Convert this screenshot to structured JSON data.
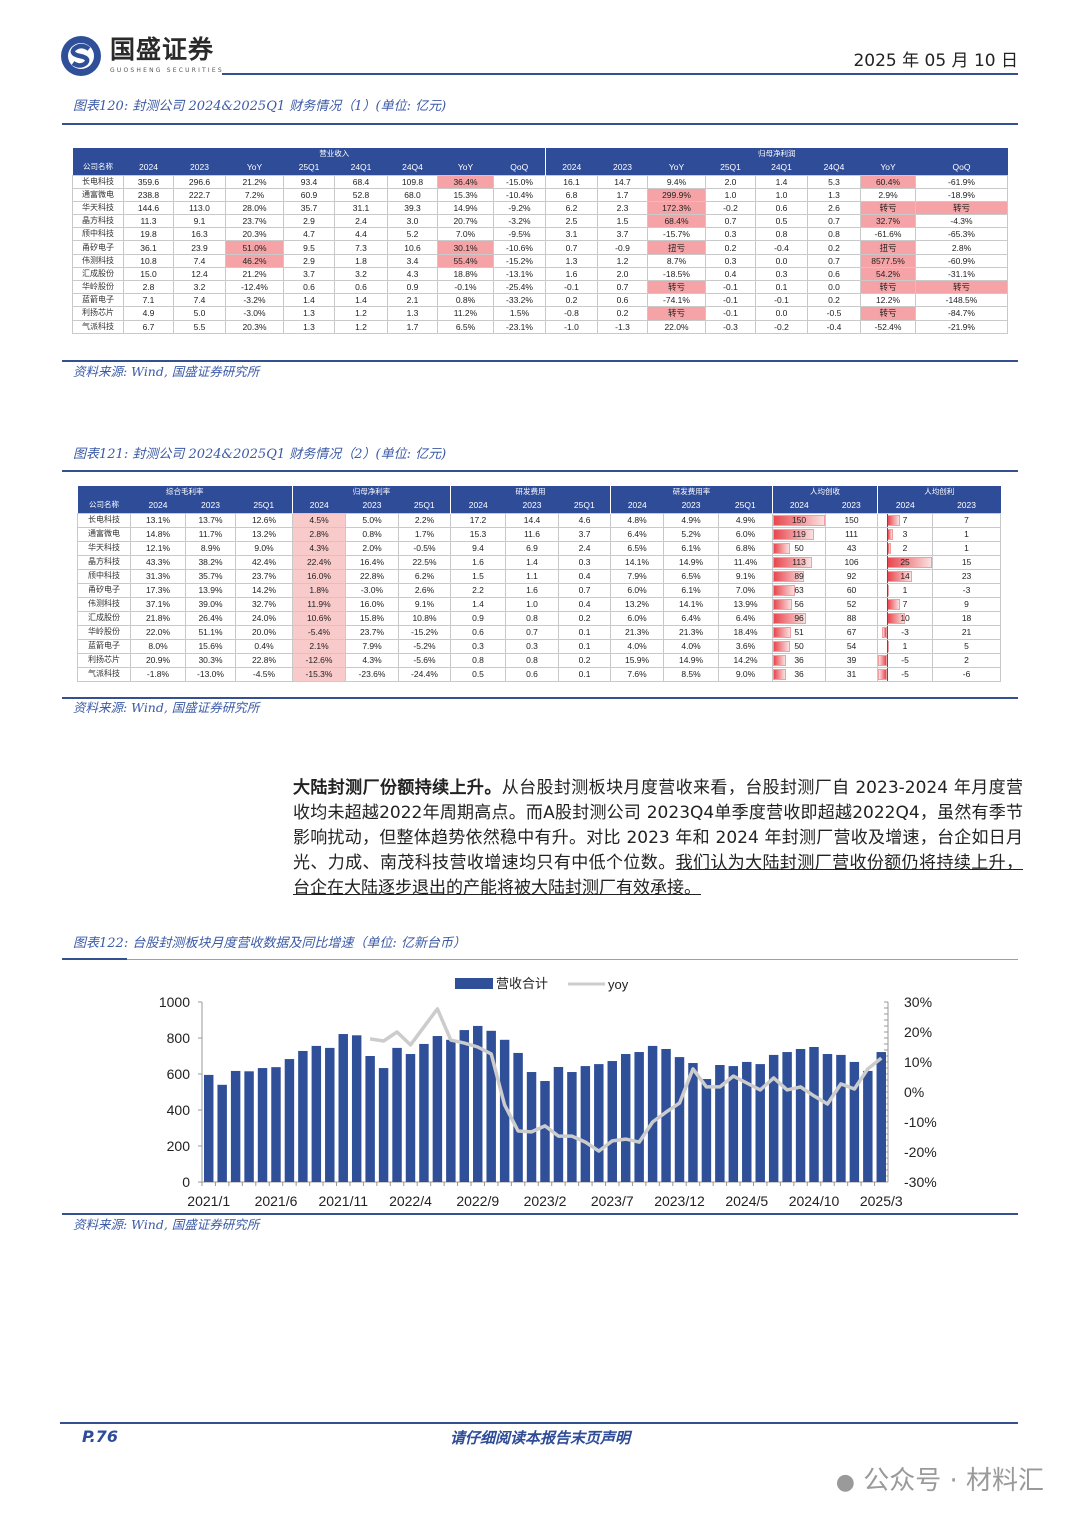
{
  "header": {
    "logo_cn": "国盛证券",
    "logo_en": "GUOSHENG SECURITIES",
    "date": "2025 年 05 月 10 日"
  },
  "figure120": {
    "title": "图表120:  封测公司 2024&2025Q1 财务情况（1）(单位:  亿元)",
    "group_revenue": "营业收入",
    "group_profit": "归母净利润",
    "columns": [
      "公司名称",
      "2024",
      "2023",
      "YoY",
      "25Q1",
      "24Q1",
      "24Q4",
      "YoY",
      "QoQ",
      "2024",
      "2023",
      "YoY",
      "25Q1",
      "24Q1",
      "24Q4",
      "YoY",
      "QoQ"
    ],
    "rows": [
      {
        "cells": [
          "长电科技",
          "359.6",
          "296.6",
          "21.2%",
          "93.4",
          "68.4",
          "109.8",
          "36.4%",
          "-15.0%",
          "16.1",
          "14.7",
          "9.4%",
          "2.0",
          "1.4",
          "5.3",
          "60.4%",
          "-61.9%"
        ],
        "highlight": [
          7,
          15
        ]
      },
      {
        "cells": [
          "通富微电",
          "238.8",
          "222.7",
          "7.2%",
          "60.9",
          "52.8",
          "68.0",
          "15.3%",
          "-10.4%",
          "6.8",
          "1.7",
          "299.9%",
          "1.0",
          "1.0",
          "1.3",
          "2.9%",
          "-18.9%"
        ],
        "highlight": [
          11
        ]
      },
      {
        "cells": [
          "华天科技",
          "144.6",
          "113.0",
          "28.0%",
          "35.7",
          "31.1",
          "39.3",
          "14.9%",
          "-9.2%",
          "6.2",
          "2.3",
          "172.3%",
          "-0.2",
          "0.6",
          "2.6",
          "转亏",
          "转亏"
        ],
        "highlight": [
          11,
          15,
          16
        ]
      },
      {
        "cells": [
          "晶方科技",
          "11.3",
          "9.1",
          "23.7%",
          "2.9",
          "2.4",
          "3.0",
          "20.7%",
          "-3.2%",
          "2.5",
          "1.5",
          "68.4%",
          "0.7",
          "0.5",
          "0.7",
          "32.7%",
          "-4.3%"
        ],
        "highlight": [
          11,
          15
        ]
      },
      {
        "cells": [
          "颀中科技",
          "19.8",
          "16.3",
          "20.3%",
          "4.7",
          "4.4",
          "5.2",
          "7.0%",
          "-9.5%",
          "3.1",
          "3.7",
          "-15.7%",
          "0.3",
          "0.8",
          "0.8",
          "-61.6%",
          "-65.3%"
        ],
        "highlight": []
      },
      {
        "cells": [
          "甬矽电子",
          "36.1",
          "23.9",
          "51.0%",
          "9.5",
          "7.3",
          "10.6",
          "30.1%",
          "-10.6%",
          "0.7",
          "-0.9",
          "扭亏",
          "0.2",
          "-0.4",
          "0.2",
          "扭亏",
          "2.8%"
        ],
        "highlight": [
          3,
          7,
          11,
          15
        ]
      },
      {
        "cells": [
          "伟测科技",
          "10.8",
          "7.4",
          "46.2%",
          "2.9",
          "1.8",
          "3.4",
          "55.4%",
          "-15.2%",
          "1.3",
          "1.2",
          "8.7%",
          "0.3",
          "0.0",
          "0.7",
          "8577.5%",
          "-60.9%"
        ],
        "highlight": [
          3,
          7,
          15
        ]
      },
      {
        "cells": [
          "汇成股份",
          "15.0",
          "12.4",
          "21.2%",
          "3.7",
          "3.2",
          "4.3",
          "18.8%",
          "-13.1%",
          "1.6",
          "2.0",
          "-18.5%",
          "0.4",
          "0.3",
          "0.6",
          "54.2%",
          "-31.1%"
        ],
        "highlight": [
          15
        ]
      },
      {
        "cells": [
          "华岭股份",
          "2.8",
          "3.2",
          "-12.4%",
          "0.6",
          "0.6",
          "0.9",
          "-0.1%",
          "-25.4%",
          "-0.1",
          "0.7",
          "转亏",
          "-0.1",
          "0.1",
          "0.0",
          "转亏",
          "转亏"
        ],
        "highlight": [
          11,
          15,
          16
        ]
      },
      {
        "cells": [
          "蓝箭电子",
          "7.1",
          "7.4",
          "-3.2%",
          "1.4",
          "1.4",
          "2.1",
          "0.8%",
          "-33.2%",
          "0.2",
          "0.6",
          "-74.1%",
          "-0.1",
          "-0.1",
          "0.2",
          "12.2%",
          "-148.5%"
        ],
        "highlight": []
      },
      {
        "cells": [
          "利扬芯片",
          "4.9",
          "5.0",
          "-3.0%",
          "1.3",
          "1.2",
          "1.3",
          "11.2%",
          "1.5%",
          "-0.8",
          "0.2",
          "转亏",
          "-0.1",
          "0.0",
          "-0.5",
          "转亏",
          "-84.7%"
        ],
        "highlight": [
          11,
          15
        ]
      },
      {
        "cells": [
          "气派科技",
          "6.7",
          "5.5",
          "20.3%",
          "1.3",
          "1.2",
          "1.7",
          "6.5%",
          "-23.1%",
          "-1.0",
          "-1.3",
          "22.0%",
          "-0.3",
          "-0.2",
          "-0.4",
          "-52.4%",
          "-21.9%"
        ],
        "highlight": []
      }
    ],
    "source": "资料来源:  Wind,  国盛证券研究所"
  },
  "figure121": {
    "title": "图表121:  封测公司 2024&2025Q1 财务情况（2）(单位:  亿元)",
    "groups": [
      "综合毛利率",
      "归母净利率",
      "研发费用",
      "研发费用率",
      "人均创收",
      "人均创利"
    ],
    "columns": [
      "公司名称",
      "2024",
      "2023",
      "25Q1",
      "2024",
      "2023",
      "25Q1",
      "2024",
      "2023",
      "25Q1",
      "2024",
      "2023",
      "25Q1",
      "2024",
      "2023",
      "2024",
      "2023"
    ],
    "rows": [
      [
        "长电科技",
        "13.1%",
        "13.7%",
        "12.6%",
        "4.5%",
        "5.0%",
        "2.2%",
        "17.2",
        "14.4",
        "4.6",
        "4.8%",
        "4.9%",
        "4.9%",
        150,
        150,
        7,
        7
      ],
      [
        "通富微电",
        "14.8%",
        "11.7%",
        "13.2%",
        "2.8%",
        "0.8%",
        "1.7%",
        "15.3",
        "11.6",
        "3.7",
        "6.4%",
        "5.2%",
        "6.0%",
        119,
        111,
        3,
        1
      ],
      [
        "华天科技",
        "12.1%",
        "8.9%",
        "9.0%",
        "4.3%",
        "2.0%",
        "-0.5%",
        "9.4",
        "6.9",
        "2.4",
        "6.5%",
        "6.1%",
        "6.8%",
        50,
        43,
        2,
        1
      ],
      [
        "晶方科技",
        "43.3%",
        "38.2%",
        "42.4%",
        "22.4%",
        "16.4%",
        "22.5%",
        "1.6",
        "1.4",
        "0.3",
        "14.1%",
        "14.9%",
        "11.4%",
        113,
        106,
        25,
        15
      ],
      [
        "颀中科技",
        "31.3%",
        "35.7%",
        "23.7%",
        "16.0%",
        "22.8%",
        "6.2%",
        "1.5",
        "1.1",
        "0.4",
        "7.9%",
        "6.5%",
        "9.1%",
        89,
        92,
        14,
        23
      ],
      [
        "甬矽电子",
        "17.3%",
        "13.9%",
        "14.2%",
        "1.8%",
        "-3.0%",
        "2.6%",
        "2.2",
        "1.6",
        "0.7",
        "6.0%",
        "6.1%",
        "7.0%",
        63,
        60,
        1,
        -3
      ],
      [
        "伟测科技",
        "37.1%",
        "39.0%",
        "32.7%",
        "11.9%",
        "16.0%",
        "9.1%",
        "1.4",
        "1.0",
        "0.4",
        "13.2%",
        "14.1%",
        "13.9%",
        56,
        52,
        7,
        9
      ],
      [
        "汇成股份",
        "21.8%",
        "26.4%",
        "24.0%",
        "10.6%",
        "15.8%",
        "10.8%",
        "0.9",
        "0.8",
        "0.2",
        "6.0%",
        "6.4%",
        "6.4%",
        96,
        88,
        10,
        18
      ],
      [
        "华岭股份",
        "22.0%",
        "51.1%",
        "20.0%",
        "-5.4%",
        "23.7%",
        "-15.2%",
        "0.6",
        "0.7",
        "0.1",
        "21.3%",
        "21.3%",
        "18.4%",
        51,
        67,
        -3,
        21
      ],
      [
        "蓝箭电子",
        "8.0%",
        "15.6%",
        "0.4%",
        "2.1%",
        "7.9%",
        "-5.2%",
        "0.3",
        "0.3",
        "0.1",
        "4.0%",
        "4.0%",
        "3.6%",
        50,
        54,
        1,
        5
      ],
      [
        "利扬芯片",
        "20.9%",
        "30.3%",
        "22.8%",
        "-12.6%",
        "4.3%",
        "-5.6%",
        "0.8",
        "0.8",
        "0.2",
        "15.9%",
        "14.9%",
        "14.2%",
        36,
        39,
        -5,
        2
      ],
      [
        "气派科技",
        "-1.8%",
        "-13.0%",
        "-4.5%",
        "-15.3%",
        "-23.6%",
        "-24.4%",
        "0.5",
        "0.6",
        "0.1",
        "7.6%",
        "8.5%",
        "9.0%",
        36,
        31,
        -5,
        -6
      ]
    ],
    "source": "资料来源:  Wind,  国盛证券研究所"
  },
  "paragraph": {
    "bold": "大陆封测厂份额持续上升。",
    "text": "从台股封测板块月度营收来看，台股封测厂自 2023-2024 年月度营收均未超越2022年周期高点。而A股封测公司 2023Q4单季度营收即超越2022Q4，虽然有季节影响扰动，但整体趋势依然稳中有升。对比 2023 年和 2024 年封测厂营收及增速，台企如日月光、力成、南茂科技营收增速均只有中低个位数。",
    "underlined": "我们认为大陆封测厂营收份额仍将持续上升，台企在大陆逐步退出的产能将被大陆封测厂有效承接。"
  },
  "figure122": {
    "title": "图表122:  台股封测板块月度营收数据及同比增速（单位:  亿新台币）",
    "source": "资料来源:  Wind,  国盛证券研究所"
  },
  "chart_data": {
    "type": "bar+line",
    "title": "台股封测板块月度营收数据及同比增速",
    "legend": [
      "营收合计",
      "yoy"
    ],
    "legend_position": "top-center",
    "x": [
      "2021/1",
      "2021/2",
      "2021/3",
      "2021/4",
      "2021/5",
      "2021/6",
      "2021/7",
      "2021/8",
      "2021/9",
      "2021/10",
      "2021/11",
      "2021/12",
      "2022/1",
      "2022/2",
      "2022/3",
      "2022/4",
      "2022/5",
      "2022/6",
      "2022/7",
      "2022/8",
      "2022/9",
      "2022/10",
      "2022/11",
      "2022/12",
      "2023/1",
      "2023/2",
      "2023/3",
      "2023/4",
      "2023/5",
      "2023/6",
      "2023/7",
      "2023/8",
      "2023/9",
      "2023/10",
      "2023/11",
      "2023/12",
      "2024/1",
      "2024/2",
      "2024/3",
      "2024/4",
      "2024/5",
      "2024/6",
      "2024/7",
      "2024/8",
      "2024/9",
      "2024/10",
      "2024/11",
      "2024/12",
      "2025/1",
      "2025/2",
      "2025/3"
    ],
    "x_tick_labels": [
      "2021/1",
      "2021/6",
      "2021/11",
      "2022/4",
      "2022/9",
      "2023/2",
      "2023/7",
      "2023/12",
      "2024/5",
      "2024/10",
      "2025/3"
    ],
    "series": [
      {
        "name": "营收合计",
        "axis": "left",
        "type": "bar",
        "color": "#2f4f98",
        "values": [
          595,
          540,
          617,
          615,
          633,
          638,
          683,
          728,
          756,
          745,
          822,
          815,
          700,
          633,
          745,
          711,
          767,
          811,
          790,
          844,
          867,
          840,
          790,
          717,
          611,
          561,
          639,
          611,
          644,
          655,
          672,
          711,
          722,
          756,
          739,
          694,
          661,
          572,
          650,
          644,
          667,
          655,
          706,
          722,
          739,
          750,
          711,
          706,
          667,
          617,
          722
        ]
      },
      {
        "name": "yoy",
        "axis": "right",
        "type": "line",
        "color": "#cccccc",
        "values": [
          null,
          null,
          null,
          null,
          null,
          null,
          null,
          null,
          null,
          null,
          null,
          null,
          17.7,
          17,
          20,
          15.7,
          21.7,
          27.7,
          17.3,
          16.3,
          15,
          12.7,
          -4.3,
          -13,
          -13.3,
          -11.3,
          -14.7,
          -14.7,
          -16.7,
          -19.7,
          -16.3,
          -15.7,
          -16.7,
          -10,
          -6.7,
          -3.7,
          7.7,
          1.7,
          1.7,
          5.3,
          3,
          0.7,
          4.7,
          0.7,
          1.7,
          -1.3,
          -4,
          2.7,
          1,
          7.7,
          11.3
        ]
      }
    ],
    "y_left": {
      "range": [
        0,
        1000
      ],
      "ticks": [
        "0",
        "200",
        "400",
        "600",
        "800",
        "1000"
      ]
    },
    "y_right": {
      "range": [
        -30,
        30
      ],
      "ticks": [
        "-30%",
        "-20%",
        "-10%",
        "0%",
        "10%",
        "20%",
        "30%"
      ]
    }
  },
  "footer": {
    "page": "P.76",
    "note": "请仔细阅读本报告末页声明",
    "watermark": "公众号 · 材料汇"
  }
}
